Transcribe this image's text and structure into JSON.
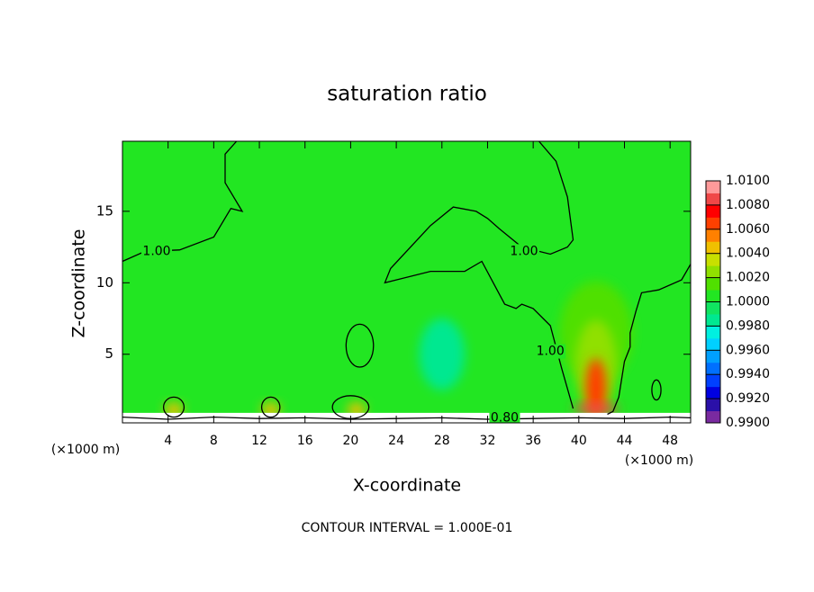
{
  "chart_data": {
    "type": "contour",
    "title": "saturation ratio",
    "xlabel": "X-coordinate",
    "ylabel": "Z-coordinate",
    "x_unit_left": "(×1000 m)",
    "x_unit_right": "(×1000 m)",
    "footer": "CONTOUR INTERVAL = 1.000E-01",
    "xlim": [
      0,
      49.8
    ],
    "ylim": [
      0.2,
      19.9
    ],
    "xticks": [
      4,
      8,
      12,
      16,
      20,
      24,
      28,
      32,
      36,
      40,
      44,
      48
    ],
    "yticks": [
      5,
      10,
      15
    ],
    "background_value": 1.0005,
    "surface": {
      "ztop": 0.9,
      "value": 0.8
    },
    "field": [
      {
        "x": 41.5,
        "z": 6.5,
        "rx": 3.2,
        "rz": 3.6,
        "value": 1.0015
      },
      {
        "x": 41.5,
        "z": 4.2,
        "rx": 1.8,
        "rz": 3.2,
        "value": 1.003
      },
      {
        "x": 28,
        "z": 5,
        "rx": 2,
        "rz": 2.5,
        "value": 0.9985
      },
      {
        "x": 41.5,
        "z": 2.6,
        "rx": 0.9,
        "rz": 2.1,
        "value": 1.007
      },
      {
        "x": 41.5,
        "z": 1.2,
        "rx": 2,
        "rz": 0.35,
        "value": 1.009
      },
      {
        "x": 4.5,
        "z": 1.1,
        "rx": 0.8,
        "rz": 0.5,
        "value": 1.004
      },
      {
        "x": 13,
        "z": 1.1,
        "rx": 0.8,
        "rz": 0.5,
        "value": 1.004
      },
      {
        "x": 20.5,
        "z": 1.1,
        "rx": 0.8,
        "rz": 0.5,
        "value": 1.004
      }
    ],
    "contours": [
      {
        "level": 1,
        "x": [
          0,
          2,
          5,
          8,
          9.5,
          10.5,
          9,
          9,
          10
        ],
        "z": [
          11.5,
          12.2,
          12.3,
          13.2,
          15.2,
          15,
          17,
          19,
          19.9
        ],
        "labels": [
          {
            "text": "1.00",
            "x": 3,
            "z": 12.2
          }
        ]
      },
      {
        "level": 1,
        "x": [
          36.5,
          38,
          39,
          39.5,
          39,
          37.5,
          35,
          33,
          32,
          31,
          29,
          27,
          23.5,
          23,
          24,
          27,
          30,
          31.5,
          32.5,
          33.5,
          34.5,
          35,
          36,
          37.5,
          38.5,
          39.5
        ],
        "z": [
          19.9,
          18.5,
          16,
          13,
          12.5,
          12,
          12.5,
          13.8,
          14.5,
          15,
          15.3,
          14,
          11,
          10,
          10.2,
          10.8,
          10.8,
          11.5,
          10,
          8.5,
          8.2,
          8.5,
          8.2,
          7,
          4,
          1.2
        ],
        "labels": [
          {
            "text": "1.00",
            "x": 35.2,
            "z": 12.2
          },
          {
            "text": "1.00",
            "x": 37.5,
            "z": 5.2
          }
        ]
      },
      {
        "level": 1,
        "x": [
          49.8,
          49,
          47,
          45.5,
          45,
          44.5,
          44.5,
          44,
          43.5,
          43,
          42.5
        ],
        "z": [
          11.3,
          10.2,
          9.5,
          9.3,
          8,
          6.5,
          5.5,
          4.5,
          2,
          1,
          0.8
        ],
        "labels": []
      },
      {
        "level": 0.8,
        "x": [
          0,
          4,
          8,
          12,
          16,
          20,
          24,
          28,
          32,
          36,
          40,
          44,
          48,
          49.8
        ],
        "z": [
          0.6,
          0.45,
          0.6,
          0.5,
          0.55,
          0.45,
          0.5,
          0.55,
          0.45,
          0.5,
          0.55,
          0.5,
          0.6,
          0.55
        ],
        "labels": [
          {
            "text": "0.80",
            "x": 33.5,
            "z": 0.55
          }
        ]
      }
    ],
    "closed_contours": [
      {
        "level": 1,
        "x": 20.8,
        "z": 5.6,
        "rx": 1.2,
        "rz": 1.5
      },
      {
        "level": 1,
        "x": 4.5,
        "z": 1.3,
        "rx": 0.9,
        "rz": 0.7
      },
      {
        "level": 1,
        "x": 13,
        "z": 1.3,
        "rx": 0.8,
        "rz": 0.7
      },
      {
        "level": 1,
        "x": 20,
        "z": 1.3,
        "rx": 1.6,
        "rz": 0.8
      },
      {
        "level": 1,
        "x": 46.8,
        "z": 2.5,
        "rx": 0.4,
        "rz": 0.7
      }
    ],
    "colorbar": {
      "range": [
        0.99,
        1.01
      ],
      "ticks": [
        {
          "value": 1.01,
          "label": "1.0100"
        },
        {
          "value": 1.008,
          "label": "1.0080"
        },
        {
          "value": 1.006,
          "label": "1.0060"
        },
        {
          "value": 1.004,
          "label": "1.0040"
        },
        {
          "value": 1.002,
          "label": "1.0020"
        },
        {
          "value": 1.0,
          "label": "1.0000"
        },
        {
          "value": 0.998,
          "label": "0.9980"
        },
        {
          "value": 0.996,
          "label": "0.9960"
        },
        {
          "value": 0.994,
          "label": "0.9940"
        },
        {
          "value": 0.992,
          "label": "0.9920"
        },
        {
          "value": 0.99,
          "label": "0.9900"
        }
      ],
      "colors": [
        "#7a2aa0",
        "#2a10a8",
        "#0000e0",
        "#0040ff",
        "#0070ff",
        "#00a0ff",
        "#00d0ff",
        "#00f0e0",
        "#00e890",
        "#10e460",
        "#22e622",
        "#50e000",
        "#90e000",
        "#c8e000",
        "#f0c000",
        "#ff8000",
        "#ff4000",
        "#ff0000",
        "#f04848",
        "#ff9a9a"
      ]
    }
  }
}
